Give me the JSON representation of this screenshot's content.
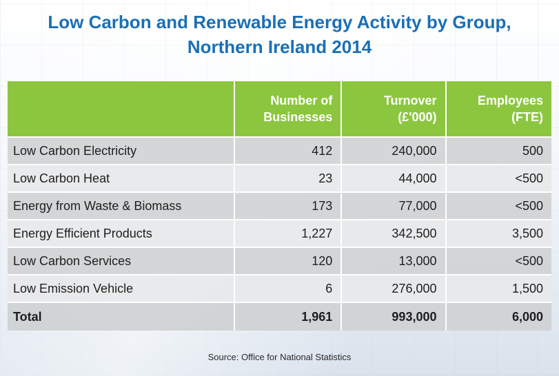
{
  "title": {
    "line1": "Low Carbon and Renewable Energy Activity by Group,",
    "line2": "Northern Ireland 2014"
  },
  "colors": {
    "title": "#1a6fb5",
    "header_bg": "#8cc63f",
    "row_dark": "#d0d2d4",
    "row_light": "#e7e8e9"
  },
  "chart_data": {
    "type": "table",
    "title": "Low Carbon and Renewable Energy Activity by Group, Northern Ireland 2014",
    "columns": [
      {
        "label_line1": "",
        "label_line2": ""
      },
      {
        "label_line1": "Number of",
        "label_line2": "Businesses"
      },
      {
        "label_line1": "Turnover",
        "label_line2": "(£'000)"
      },
      {
        "label_line1": "Employees",
        "label_line2": "(FTE)"
      }
    ],
    "rows": [
      {
        "group": "Low Carbon Electricity",
        "businesses": "412",
        "turnover": "240,000",
        "employees": "500"
      },
      {
        "group": "Low Carbon Heat",
        "businesses": "23",
        "turnover": "44,000",
        "employees": "<500"
      },
      {
        "group": "Energy from Waste & Biomass",
        "businesses": "173",
        "turnover": "77,000",
        "employees": "<500"
      },
      {
        "group": "Energy Efficient Products",
        "businesses": "1,227",
        "turnover": "342,500",
        "employees": "3,500"
      },
      {
        "group": "Low Carbon Services",
        "businesses": "120",
        "turnover": "13,000",
        "employees": "<500"
      },
      {
        "group": "Low Emission Vehicle",
        "businesses": "6",
        "turnover": "276,000",
        "employees": "1,500"
      }
    ],
    "total": {
      "group": "Total",
      "businesses": "1,961",
      "turnover": "993,000",
      "employees": "6,000"
    }
  },
  "source": "Source: Office for National Statistics"
}
